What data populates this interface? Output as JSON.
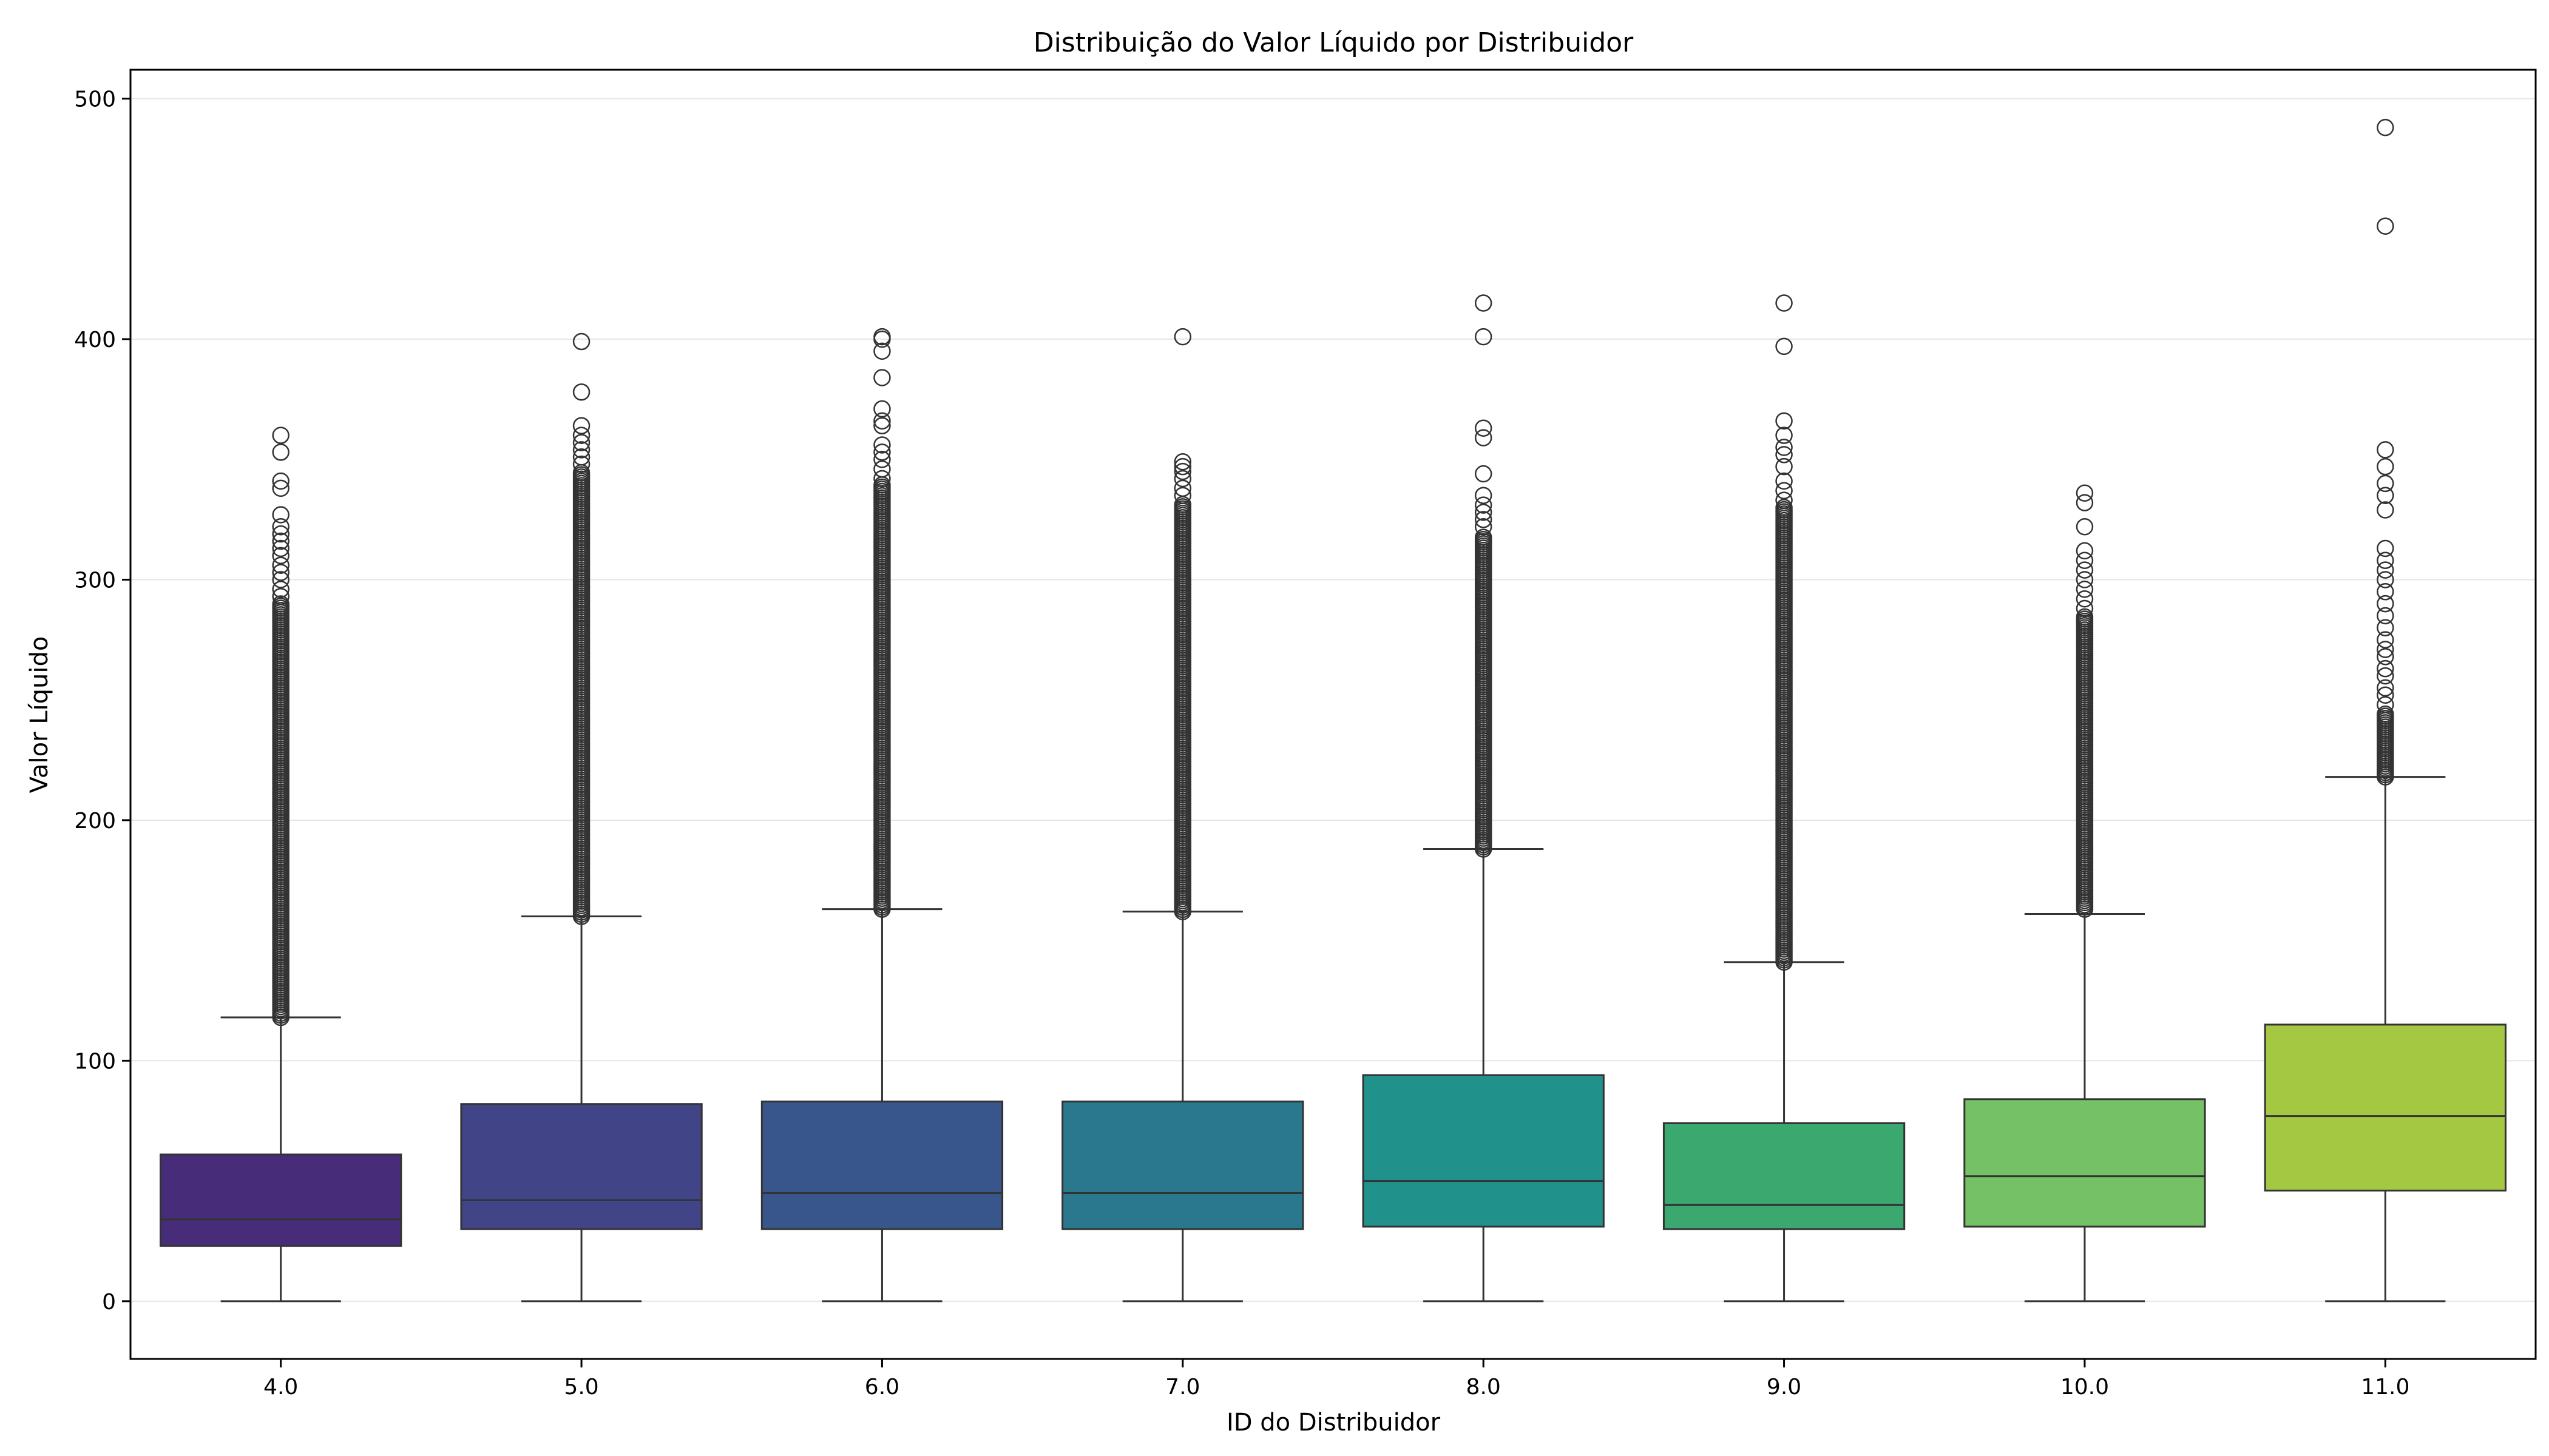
{
  "chart_data": {
    "type": "box",
    "title": "Distribuição do Valor Líquido por Distribuidor",
    "xlabel": "ID do Distribuidor",
    "ylabel": "Valor Líquido",
    "ylim": [
      -24,
      512
    ],
    "yticks": [
      0,
      100,
      200,
      300,
      400,
      500
    ],
    "grid": "horizontal",
    "legend": "none",
    "categories": [
      "4.0",
      "5.0",
      "6.0",
      "7.0",
      "8.0",
      "9.0",
      "10.0",
      "11.0"
    ],
    "boxes": [
      {
        "category": "4.0",
        "whisker_low": 0,
        "q1": 23,
        "median": 34,
        "q3": 61,
        "whisker_high": 118,
        "outliers_dense_range": [
          118,
          290
        ],
        "outliers": [
          293,
          296,
          300,
          303,
          306,
          310,
          313,
          316,
          319,
          322,
          327,
          338,
          341,
          353,
          360
        ],
        "color": "#472c7a"
      },
      {
        "category": "5.0",
        "whisker_low": 0,
        "q1": 30,
        "median": 42,
        "q3": 82,
        "whisker_high": 160,
        "outliers_dense_range": [
          160,
          345
        ],
        "outliers": [
          348,
          351,
          354,
          357,
          360,
          364,
          378,
          399
        ],
        "color": "#414487"
      },
      {
        "category": "6.0",
        "whisker_low": 0,
        "q1": 30,
        "median": 45,
        "q3": 83,
        "whisker_high": 163,
        "outliers_dense_range": [
          163,
          340
        ],
        "outliers": [
          342,
          346,
          350,
          353,
          356,
          364,
          366,
          371,
          384,
          395,
          400,
          401
        ],
        "color": "#39568c"
      },
      {
        "category": "7.0",
        "whisker_low": 0,
        "q1": 30,
        "median": 45,
        "q3": 83,
        "whisker_high": 162,
        "outliers_dense_range": [
          162,
          332
        ],
        "outliers": [
          335,
          338,
          342,
          345,
          347,
          349,
          401
        ],
        "color": "#2a788e"
      },
      {
        "category": "8.0",
        "whisker_low": 0,
        "q1": 31,
        "median": 50,
        "q3": 94,
        "whisker_high": 188,
        "outliers_dense_range": [
          188,
          318
        ],
        "outliers": [
          322,
          325,
          328,
          331,
          335,
          344,
          359,
          363,
          401,
          415
        ],
        "color": "#21918c"
      },
      {
        "category": "9.0",
        "whisker_low": 0,
        "q1": 30,
        "median": 40,
        "q3": 74,
        "whisker_high": 141,
        "outliers_dense_range": [
          141,
          330
        ],
        "outliers": [
          333,
          337,
          341,
          347,
          352,
          355,
          360,
          366,
          397,
          415
        ],
        "color": "#3aa86f"
      },
      {
        "category": "10.0",
        "whisker_low": 0,
        "q1": 31,
        "median": 52,
        "q3": 84,
        "whisker_high": 161,
        "outliers_dense_range": [
          163,
          285
        ],
        "outliers": [
          288,
          292,
          296,
          300,
          304,
          308,
          312,
          322,
          332,
          336
        ],
        "color": "#75c165"
      },
      {
        "category": "11.0",
        "whisker_low": 0,
        "q1": 46,
        "median": 77,
        "q3": 115,
        "whisker_high": 218,
        "outliers_dense_range": [
          218,
          245
        ],
        "outliers": [
          248,
          252,
          255,
          260,
          263,
          268,
          271,
          275,
          280,
          285,
          290,
          295,
          300,
          304,
          308,
          313,
          329,
          335,
          340,
          347,
          354,
          447,
          488
        ],
        "color": "#a5c842"
      }
    ]
  }
}
